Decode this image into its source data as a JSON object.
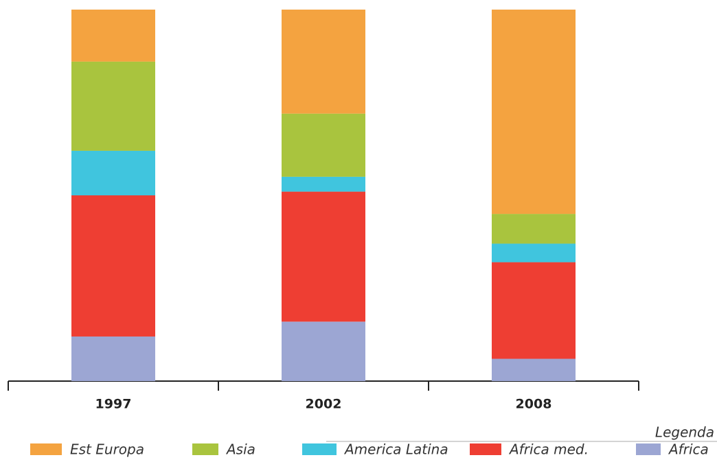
{
  "chart_data": {
    "type": "bar",
    "stacked": true,
    "categories": [
      "1997",
      "2002",
      "2008"
    ],
    "legend_title": "Legenda",
    "series": [
      {
        "name": "Est Europa",
        "color": "#f4a340",
        "values": [
          14,
          28,
          55
        ]
      },
      {
        "name": "Asia",
        "color": "#a9c43e",
        "values": [
          24,
          17,
          8
        ]
      },
      {
        "name": "America Latina",
        "color": "#40c5de",
        "values": [
          12,
          4,
          5
        ]
      },
      {
        "name": "Africa med.",
        "color": "#ee3e33",
        "values": [
          38,
          35,
          26
        ]
      },
      {
        "name": "Africa",
        "color": "#9ca6d3",
        "values": [
          12,
          16,
          6
        ]
      }
    ],
    "ylim": [
      0,
      100
    ]
  }
}
